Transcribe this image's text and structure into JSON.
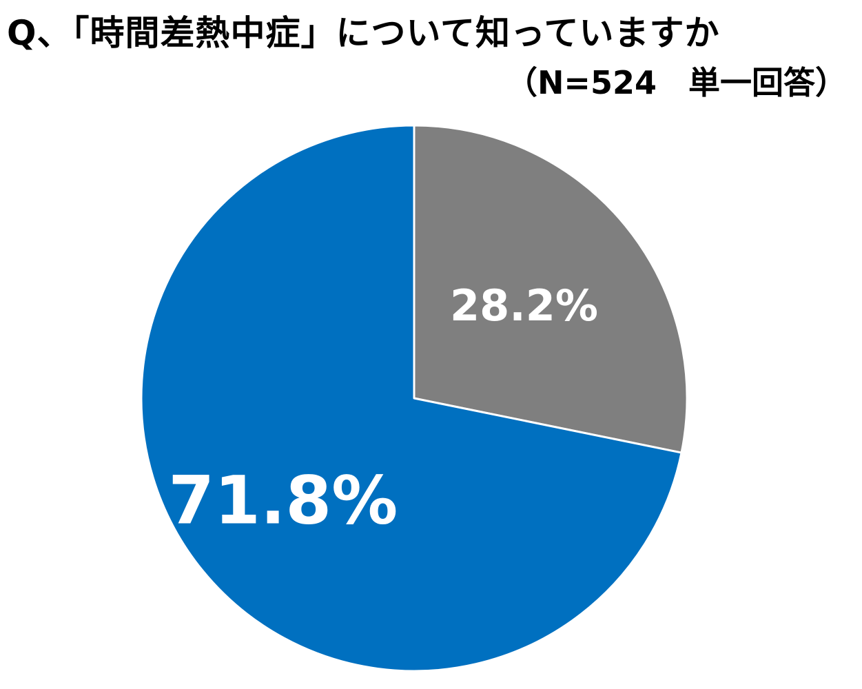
{
  "title": "Q、「時間差熱中症」について知っていますか",
  "subtitle": "（N=524　単一回答）",
  "chart_data": {
    "type": "pie",
    "title": "Q、「時間差熱中症」について知っていますか",
    "subtitle": "（N=524　単一回答）",
    "slices": [
      {
        "value": 28.2,
        "label": "28.2%",
        "color": "#7f7f7f"
      },
      {
        "value": 71.8,
        "label": "71.8%",
        "color": "#0070c0"
      }
    ],
    "start_angle_deg": 0,
    "direction": "clockwise",
    "edge_color": "#ffffff"
  }
}
